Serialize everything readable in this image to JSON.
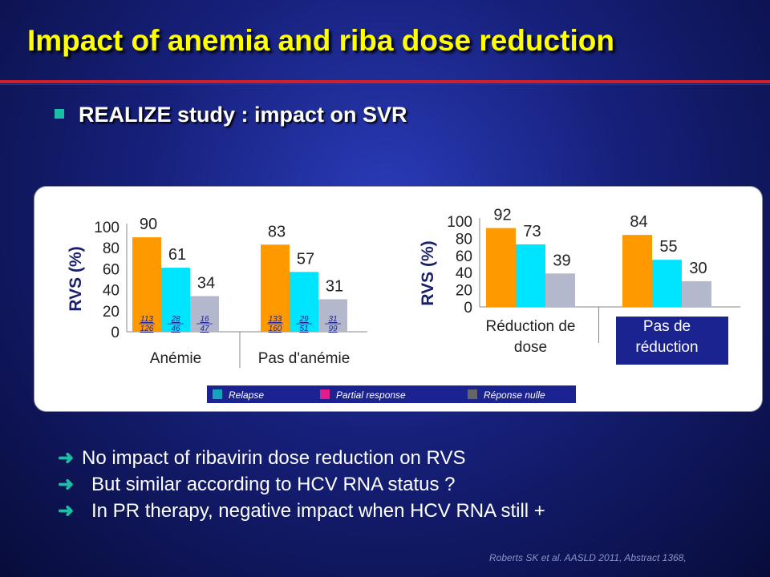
{
  "slide": {
    "title": "Impact of anemia and riba dose reduction",
    "subtitle": "REALIZE study : impact on SVR",
    "bullets": [
      "No impact of ribavirin dose reduction on RVS",
      "But similar according to HCV RNA status ?",
      "In PR therapy, negative impact when HCV RNA still +"
    ],
    "reference": "Roberts SK et al. AASLD 2011, Abstract 1368,"
  },
  "colors": {
    "series_orange": "#ff9900",
    "series_cyan": "#00e5ff",
    "series_grey": "#b4b8cc",
    "legend_relapse": "#14a4bd",
    "legend_partial": "#e0208a",
    "legend_null": "#666666",
    "title": "#ffff00",
    "bullet": "#19c0a6"
  },
  "legend": [
    {
      "label": "Relapse",
      "color": "#14a4bd"
    },
    {
      "label": "Partial response",
      "color": "#e0208a"
    },
    {
      "label": "Réponse nulle",
      "color": "#666666"
    }
  ],
  "chart_data": [
    {
      "type": "bar",
      "ylabel": "RVS (%)",
      "ylim": [
        0,
        100
      ],
      "yticks": [
        0,
        20,
        40,
        60,
        80,
        100
      ],
      "categories": [
        "Anémie",
        "Pas d'anémie"
      ],
      "series": [
        {
          "values": [
            90,
            83
          ],
          "color": "#ff9900"
        },
        {
          "values": [
            61,
            57
          ],
          "color": "#00e5ff"
        },
        {
          "values": [
            34,
            31
          ],
          "color": "#b4b8cc"
        }
      ],
      "fractions": [
        [
          "113/126",
          "28/46",
          "16/47"
        ],
        [
          "133/160",
          "29/51",
          "31/99"
        ]
      ]
    },
    {
      "type": "bar",
      "ylabel": "RVS (%)",
      "ylim": [
        0,
        100
      ],
      "yticks": [
        0,
        20,
        40,
        60,
        80,
        100
      ],
      "categories": [
        "Réduction de dose",
        "Pas de réduction"
      ],
      "series": [
        {
          "values": [
            92,
            84
          ],
          "color": "#ff9900"
        },
        {
          "values": [
            73,
            55
          ],
          "color": "#00e5ff"
        },
        {
          "values": [
            39,
            30
          ],
          "color": "#b4b8cc"
        }
      ]
    }
  ]
}
